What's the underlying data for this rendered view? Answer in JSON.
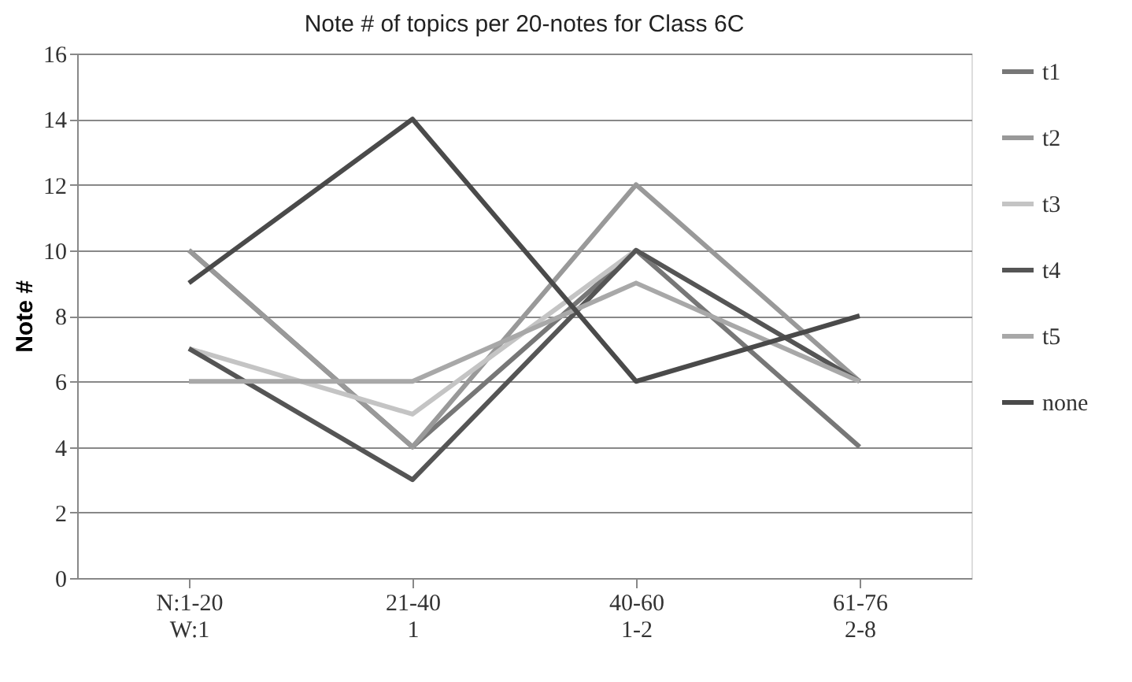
{
  "chart_data": {
    "type": "line",
    "title": "Note # of topics per 20-notes for Class 6C",
    "ylabel": "Note #",
    "categories": [
      "N:1-20\nW:1",
      "21-40\n1",
      "40-60\n1-2",
      "61-76\n2-8"
    ],
    "series": [
      {
        "name": "t1",
        "color": "#777777",
        "values": [
          10,
          4,
          10,
          4
        ]
      },
      {
        "name": "t2",
        "color": "#999999",
        "values": [
          10,
          4,
          12,
          6
        ]
      },
      {
        "name": "t3",
        "color": "#c4c4c4",
        "values": [
          7,
          5,
          10,
          6
        ]
      },
      {
        "name": "t4",
        "color": "#555555",
        "values": [
          7,
          3,
          10,
          6
        ]
      },
      {
        "name": "t5",
        "color": "#a8a8a8",
        "values": [
          6,
          6,
          9,
          6
        ]
      },
      {
        "name": "none",
        "color": "#4a4a4a",
        "values": [
          9,
          14,
          6,
          8
        ]
      }
    ],
    "ylim": [
      0,
      16
    ],
    "yticks": [
      0,
      2,
      4,
      6,
      8,
      10,
      12,
      14,
      16
    ],
    "grid": "y",
    "legend": "right",
    "marker": "none",
    "line_style": "solid"
  }
}
